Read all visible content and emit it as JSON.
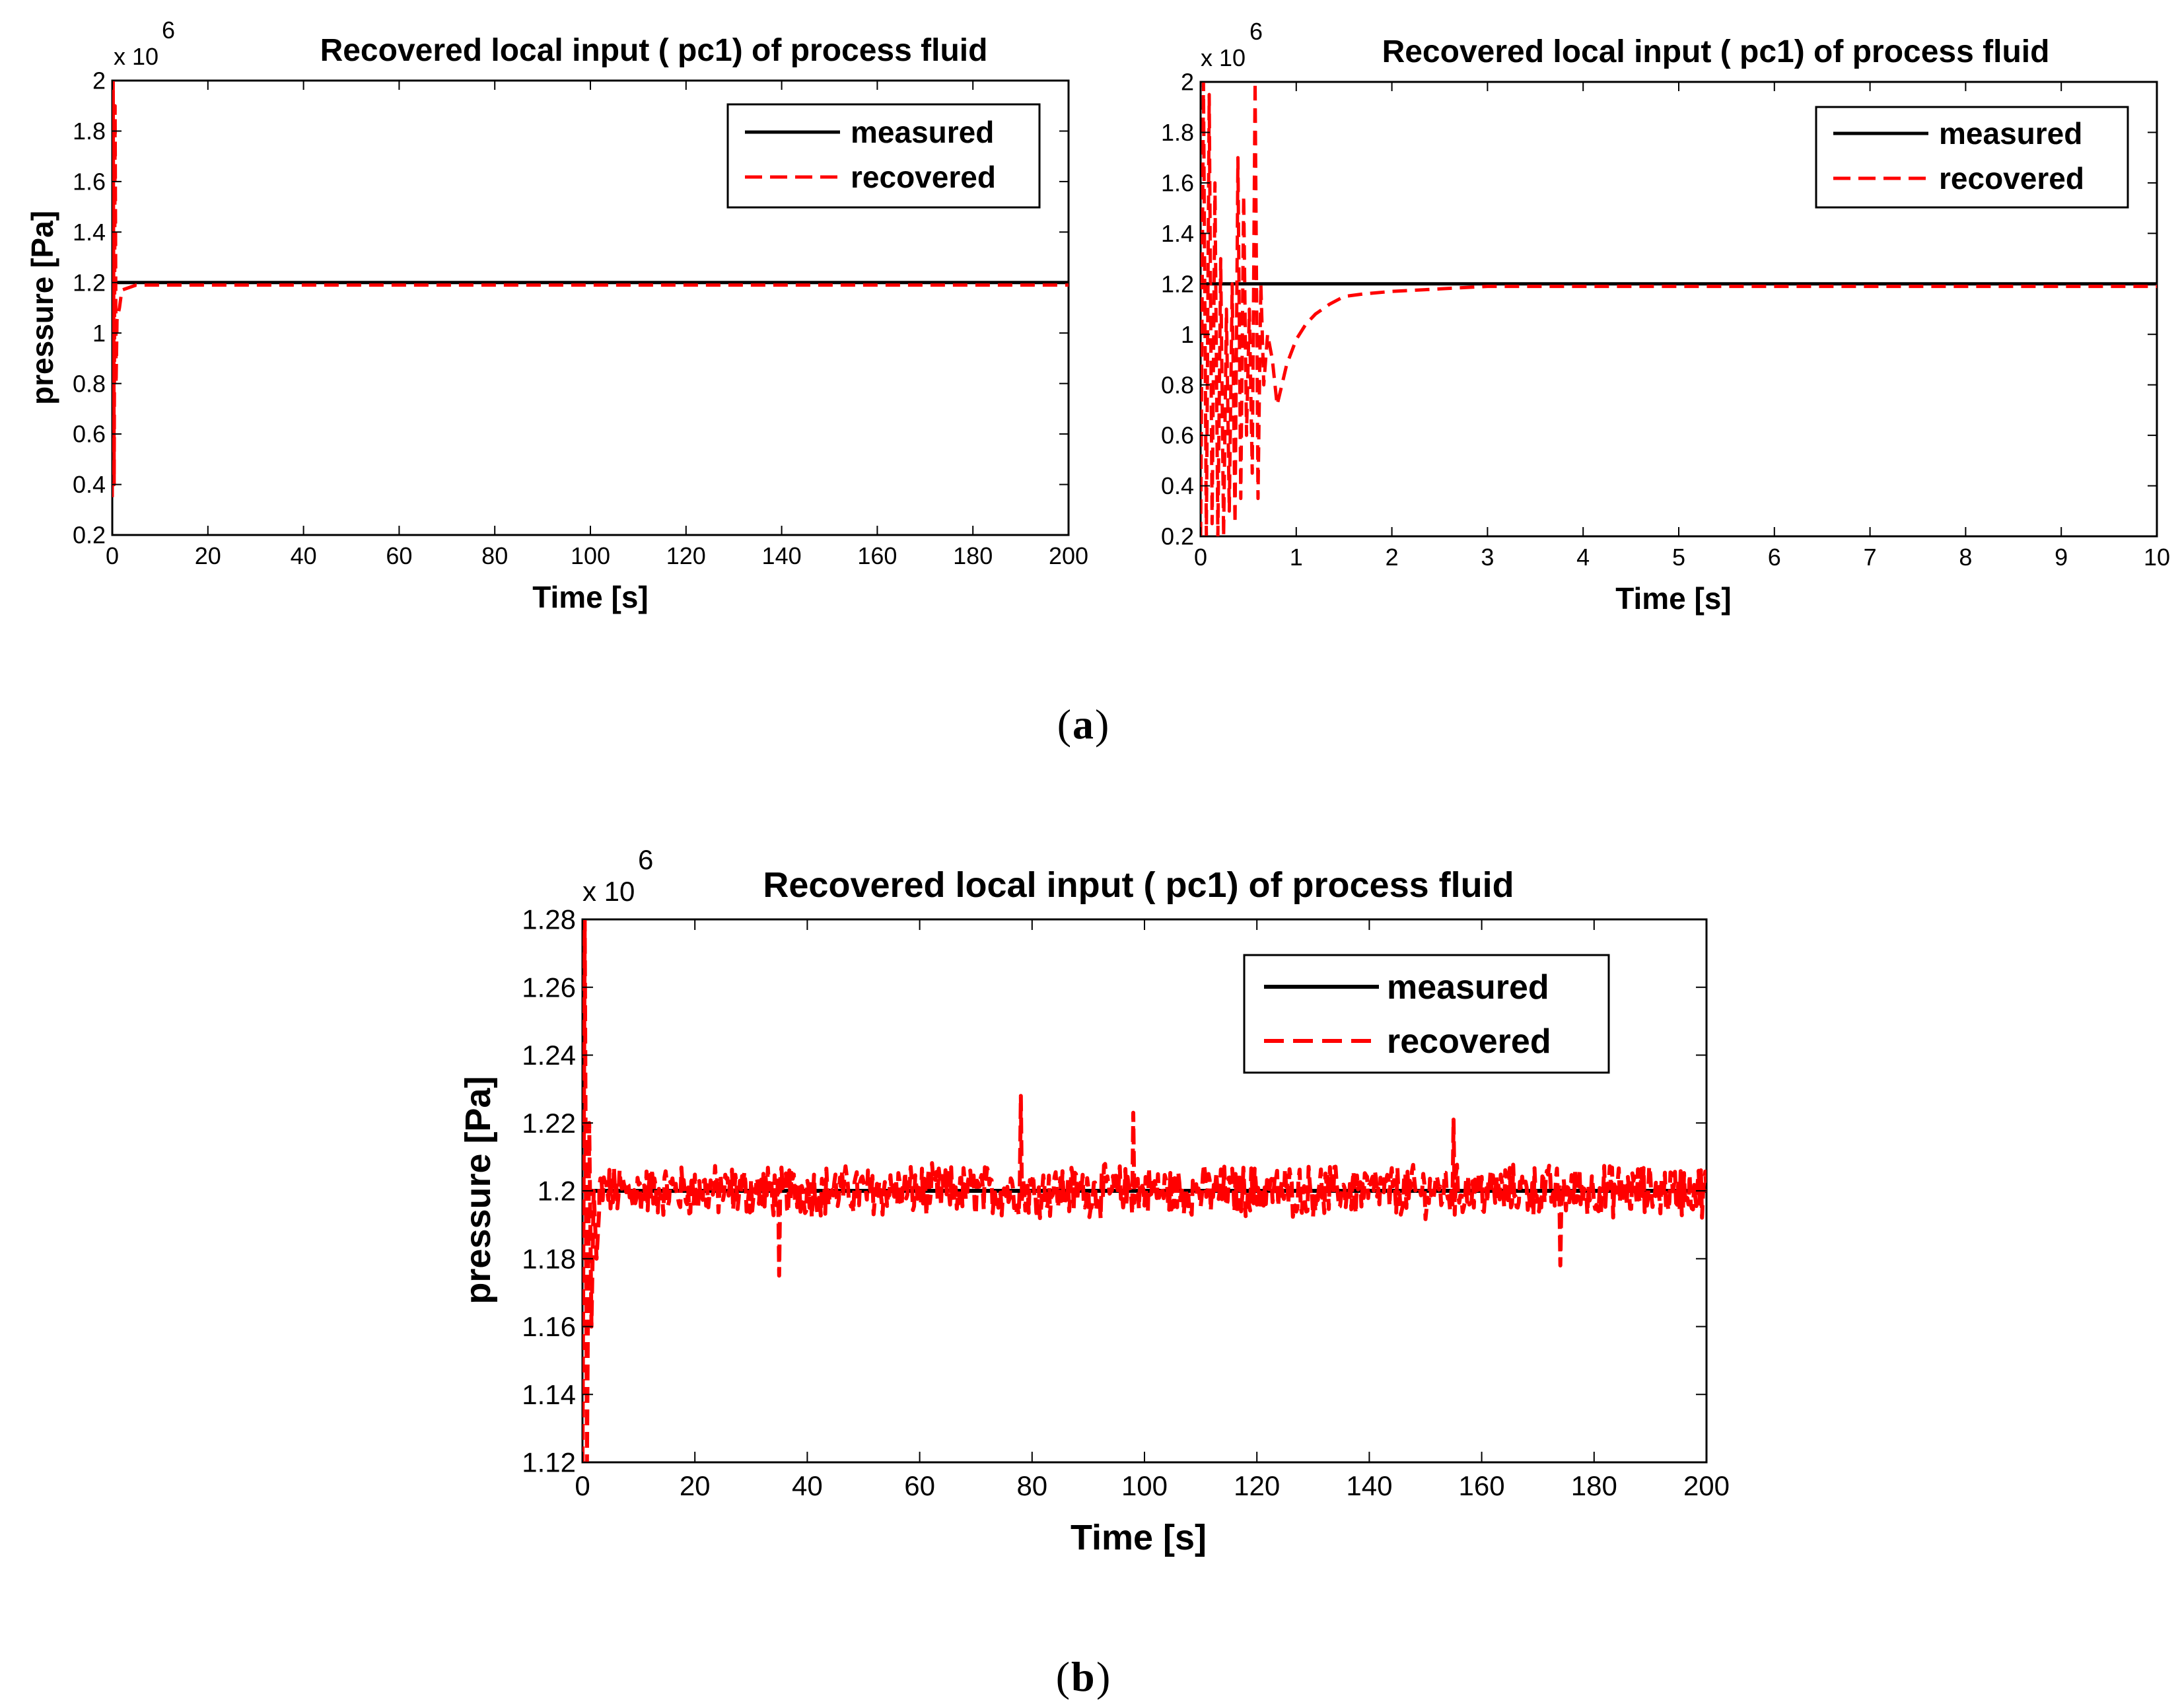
{
  "captions": {
    "a": "a",
    "b": "b"
  },
  "chart_data": [
    {
      "type": "line",
      "title": "Recovered local input ( pc1) of process fluid",
      "xlabel": "Time [s]",
      "ylabel": "pressure [Pa]",
      "y_multiplier_base": "x 10",
      "y_multiplier_exp": "6",
      "xlim": [
        0,
        200
      ],
      "ylim": [
        0.2,
        2
      ],
      "xticks": [
        "0",
        "20",
        "40",
        "60",
        "80",
        "100",
        "120",
        "140",
        "160",
        "180",
        "200"
      ],
      "yticks": [
        "0.2",
        "0.4",
        "0.6",
        "0.8",
        "1",
        "1.2",
        "1.4",
        "1.6",
        "1.8",
        "2"
      ],
      "legend": {
        "position": "top-right",
        "entries": [
          "measured",
          "recovered"
        ]
      },
      "series": [
        {
          "name": "measured",
          "style": "solid",
          "color": "#000000",
          "x": [
            0,
            200
          ],
          "y": [
            1.2,
            1.2
          ]
        },
        {
          "name": "recovered",
          "style": "dashed",
          "color": "#ff0000",
          "x": [
            0,
            0.2,
            0.4,
            0.6,
            0.8,
            1.0,
            1.5,
            2,
            5,
            200
          ],
          "y": [
            0.35,
            2.0,
            0.4,
            1.9,
            0.8,
            1.05,
            1.1,
            1.17,
            1.19,
            1.19
          ]
        }
      ]
    },
    {
      "type": "line",
      "title": "Recovered local input ( pc1) of process fluid",
      "xlabel": "Time [s]",
      "ylabel": "",
      "y_multiplier_base": "x 10",
      "y_multiplier_exp": "6",
      "xlim": [
        0,
        10
      ],
      "ylim": [
        0.2,
        2
      ],
      "xticks": [
        "0",
        "1",
        "2",
        "3",
        "4",
        "5",
        "6",
        "7",
        "8",
        "9",
        "10"
      ],
      "yticks": [
        "0.2",
        "0.4",
        "0.6",
        "0.8",
        "1",
        "1.2",
        "1.4",
        "1.6",
        "1.8",
        "2"
      ],
      "legend": {
        "position": "top-right",
        "entries": [
          "measured",
          "recovered"
        ]
      },
      "series": [
        {
          "name": "measured",
          "style": "solid",
          "color": "#000000",
          "x": [
            0,
            10
          ],
          "y": [
            1.2,
            1.2
          ]
        },
        {
          "name": "recovered",
          "style": "dashed",
          "color": "#ff0000",
          "x": [
            0,
            0.03,
            0.06,
            0.09,
            0.12,
            0.15,
            0.18,
            0.21,
            0.24,
            0.27,
            0.3,
            0.33,
            0.36,
            0.39,
            0.42,
            0.45,
            0.48,
            0.51,
            0.54,
            0.57,
            0.6,
            0.63,
            0.66,
            0.7,
            0.75,
            0.8,
            0.85,
            0.9,
            1.0,
            1.1,
            1.2,
            1.35,
            1.5,
            1.7,
            2.0,
            2.5,
            3.0,
            4.0,
            5.0,
            10.0
          ],
          "y": [
            0.2,
            2.0,
            0.2,
            1.95,
            0.25,
            1.6,
            0.2,
            1.3,
            0.2,
            1.1,
            0.3,
            1.2,
            0.25,
            1.7,
            0.35,
            1.55,
            0.6,
            1.1,
            0.45,
            2.0,
            0.35,
            1.2,
            0.8,
            1.0,
            0.9,
            0.72,
            0.8,
            0.88,
            0.98,
            1.04,
            1.08,
            1.12,
            1.15,
            1.16,
            1.17,
            1.18,
            1.19,
            1.19,
            1.19,
            1.19
          ]
        }
      ]
    },
    {
      "type": "line",
      "title": "Recovered local input ( pc1) of process fluid",
      "xlabel": "Time [s]",
      "ylabel": "pressure [Pa]",
      "y_multiplier_base": "x 10",
      "y_multiplier_exp": "6",
      "xlim": [
        0,
        200
      ],
      "ylim": [
        1.12,
        1.28
      ],
      "xticks": [
        "0",
        "20",
        "40",
        "60",
        "80",
        "100",
        "120",
        "140",
        "160",
        "180",
        "200"
      ],
      "yticks": [
        "1.12",
        "1.14",
        "1.16",
        "1.18",
        "1.2",
        "1.22",
        "1.24",
        "1.26",
        "1.28"
      ],
      "legend": {
        "position": "top-right",
        "entries": [
          "measured",
          "recovered"
        ]
      },
      "series": [
        {
          "name": "measured",
          "style": "solid",
          "color": "#000000",
          "x": [
            0,
            200
          ],
          "y": [
            1.2,
            1.2
          ]
        },
        {
          "name": "recovered",
          "style": "dashed",
          "color": "#ff0000",
          "noise": {
            "amplitude": 0.0065,
            "start": 3,
            "end": 200,
            "step": 0.2,
            "spikes": [
              {
                "x": 78,
                "y": 1.228
              },
              {
                "x": 35,
                "y": 1.175
              },
              {
                "x": 174,
                "y": 1.178
              },
              {
                "x": 98,
                "y": 1.223
              },
              {
                "x": 155,
                "y": 1.221
              }
            ]
          },
          "x": [
            0,
            0.4,
            0.8,
            1.2,
            1.6,
            2.0,
            2.5,
            3.0
          ],
          "y": [
            1.12,
            1.28,
            1.12,
            1.22,
            1.16,
            1.2,
            1.18,
            1.195
          ]
        }
      ]
    }
  ]
}
